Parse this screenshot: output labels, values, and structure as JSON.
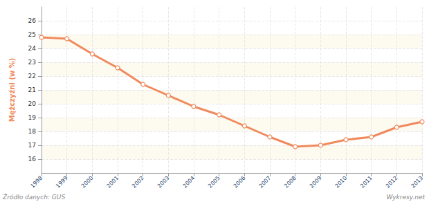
{
  "chart_data": {
    "type": "line",
    "y_label": "Mężczyźni (w %)",
    "source": "Źródło danych: GUS",
    "credit": "Wykresy.net",
    "watermark": "wykresy.net",
    "categories": [
      "1998",
      "1999",
      "2000",
      "2001",
      "2002",
      "2003",
      "2004",
      "2005",
      "2006",
      "2007",
      "2008",
      "2009",
      "2010",
      "2011",
      "2012",
      "2013"
    ],
    "values": [
      24.8,
      24.7,
      23.6,
      22.6,
      21.4,
      20.6,
      19.8,
      19.2,
      18.4,
      17.6,
      16.9,
      17.0,
      17.4,
      17.6,
      18.3,
      18.7
    ],
    "color": "#f08a5d",
    "marker": "circle",
    "ylim": [
      15,
      27
    ],
    "yticks": [
      16,
      17,
      18,
      19,
      20,
      21,
      22,
      23,
      24,
      25,
      26
    ],
    "grid": true
  }
}
